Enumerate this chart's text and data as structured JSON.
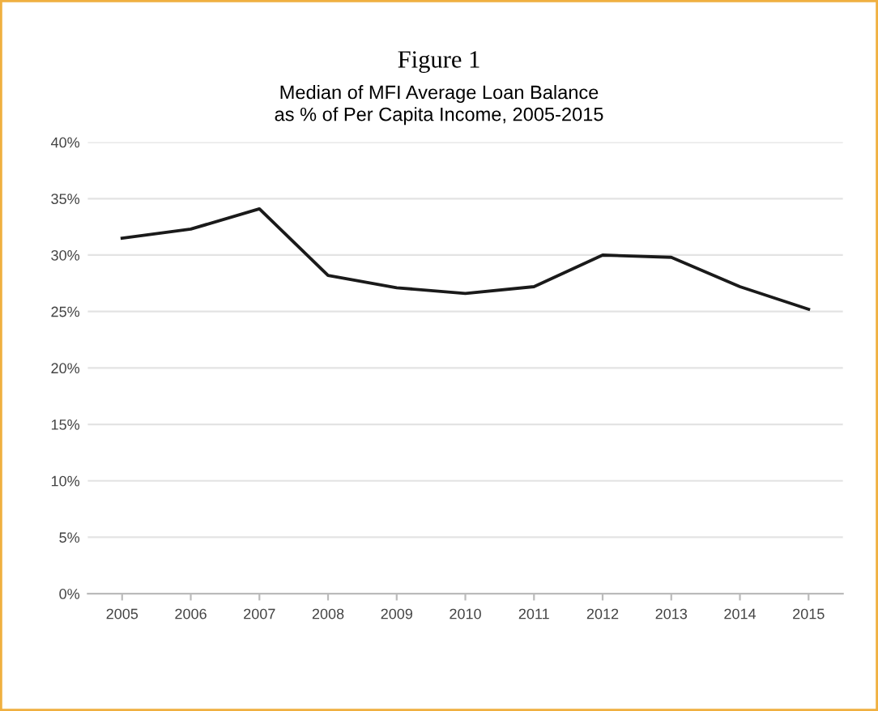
{
  "chart_data": {
    "type": "line",
    "title": "Figure 1",
    "subtitle": "Median of MFI Average Loan Balance\nas % of Per Capita Income, 2005-2015",
    "categories": [
      "2005",
      "2006",
      "2007",
      "2008",
      "2009",
      "2010",
      "2011",
      "2012",
      "2013",
      "2014",
      "2015"
    ],
    "series": [
      {
        "color": "#1a1a1a",
        "values": [
          31.5,
          32.3,
          34.1,
          28.2,
          27.1,
          26.6,
          27.2,
          30.0,
          29.8,
          27.2,
          25.2
        ]
      }
    ],
    "ylim": [
      0,
      40
    ],
    "yticks": [
      {
        "value": 0,
        "label": "0%"
      },
      {
        "value": 5,
        "label": "5%"
      },
      {
        "value": 10,
        "label": "10%"
      },
      {
        "value": 15,
        "label": "15%"
      },
      {
        "value": 20,
        "label": "20%"
      },
      {
        "value": 25,
        "label": "25%"
      },
      {
        "value": 30,
        "label": "30%"
      },
      {
        "value": 35,
        "label": "35%"
      },
      {
        "value": 40,
        "label": "40%"
      }
    ],
    "grid": "y",
    "marker": "none",
    "line_style": "solid"
  }
}
